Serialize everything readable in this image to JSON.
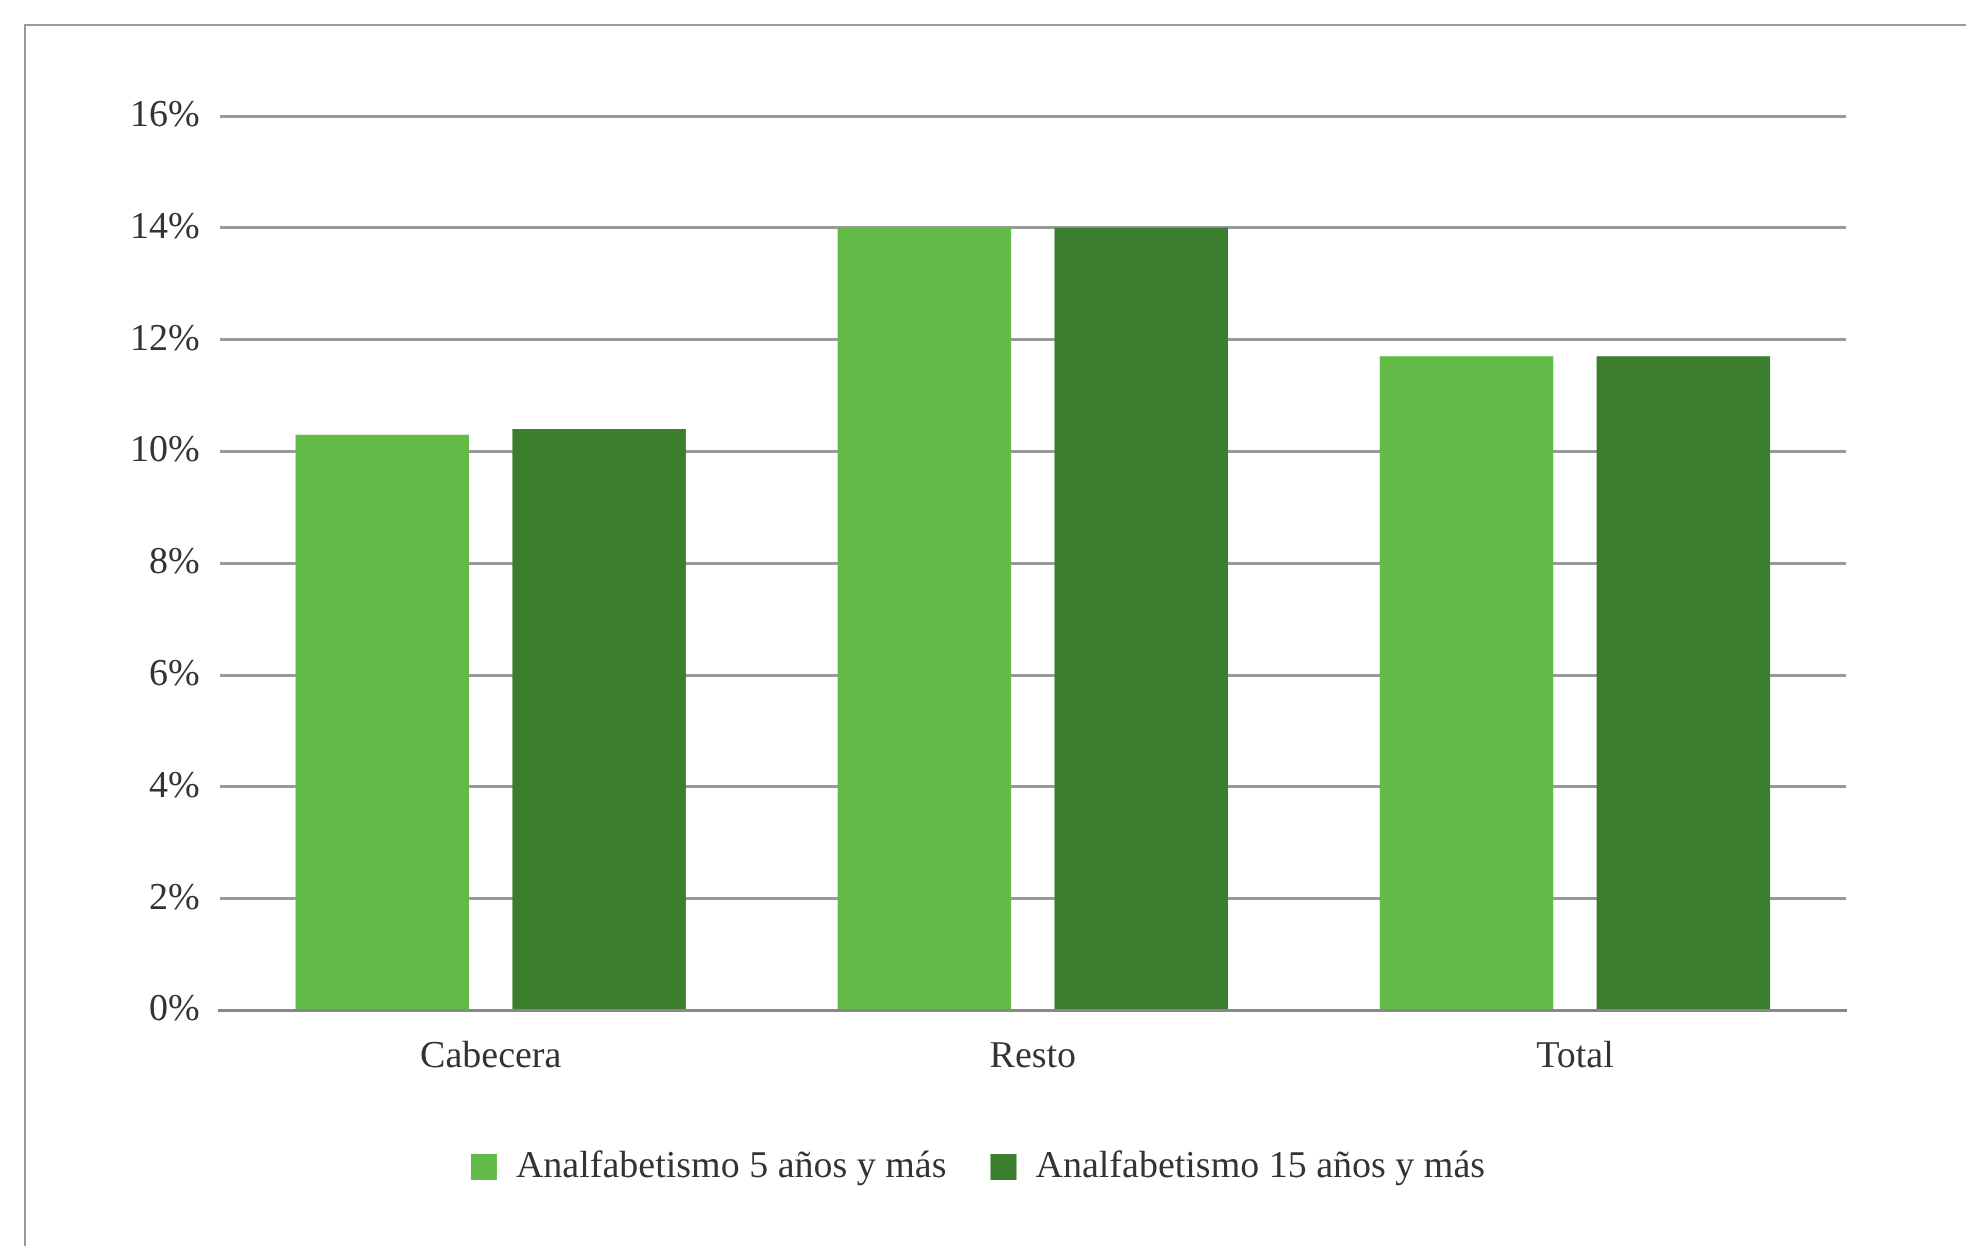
{
  "chart_data": {
    "type": "bar",
    "categories": [
      "Cabecera",
      "Resto",
      "Total"
    ],
    "series": [
      {
        "name": "Analfabetismo 5 años y más",
        "color": "#62bb46",
        "values": [
          10.3,
          14.0,
          11.7
        ]
      },
      {
        "name": "Analfabetismo 15 años y más",
        "color": "#3a7e2e",
        "values": [
          10.4,
          14.0,
          11.7
        ]
      }
    ],
    "ylim": [
      0,
      16
    ],
    "yticks": [
      {
        "value": 0,
        "label": "0%"
      },
      {
        "value": 2,
        "label": "2%"
      },
      {
        "value": 4,
        "label": "4%"
      },
      {
        "value": 6,
        "label": "6%"
      },
      {
        "value": 8,
        "label": "8%"
      },
      {
        "value": 10,
        "label": "10%"
      },
      {
        "value": 12,
        "label": "12%"
      },
      {
        "value": 14,
        "label": "14%"
      },
      {
        "value": 16,
        "label": "16%"
      }
    ],
    "grid": "y",
    "legend": "bottom"
  }
}
